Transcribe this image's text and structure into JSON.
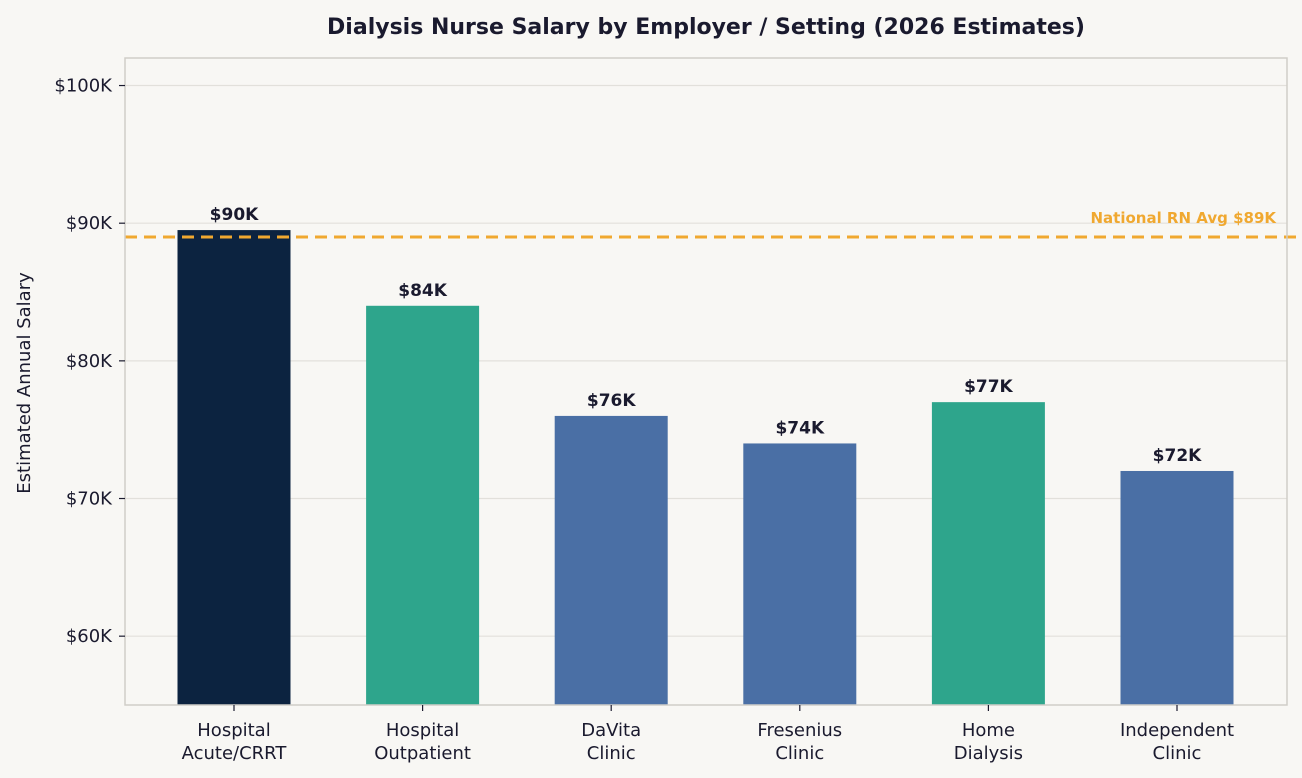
{
  "chart_data": {
    "type": "bar",
    "title": "Dialysis Nurse Salary by Employer / Setting (2026 Estimates)",
    "xlabel": "",
    "ylabel": "Estimated Annual Salary",
    "categories": [
      [
        "Hospital",
        "Acute/CRRT"
      ],
      [
        "Hospital",
        "Outpatient"
      ],
      [
        "DaVita",
        "Clinic"
      ],
      [
        "Fresenius",
        "Clinic"
      ],
      [
        "Home",
        "Dialysis"
      ],
      [
        "Independent",
        "Clinic"
      ]
    ],
    "values": [
      89500,
      84000,
      76000,
      74000,
      77000,
      72000
    ],
    "value_labels": [
      "$90K",
      "$84K",
      "$76K",
      "$74K",
      "$77K",
      "$72K"
    ],
    "bar_colors": [
      "#0c2340",
      "#2ea58c",
      "#4a6fa5",
      "#4a6fa5",
      "#2ea58c",
      "#4a6fa5"
    ],
    "ylim": [
      55000,
      102000
    ],
    "yticks": [
      60000,
      70000,
      80000,
      90000,
      100000
    ],
    "ytick_labels": [
      "$60K",
      "$70K",
      "$80K",
      "$90K",
      "$100K"
    ],
    "reference_line": {
      "value": 89000,
      "label": "National RN Avg $89K",
      "color": "#f0a830",
      "style": "dashed"
    },
    "grid": true,
    "colors": {
      "background": "#f8f7f4",
      "grid": "#e2e0db",
      "frame": "#d0cec8",
      "text": "#1a1a2e"
    }
  }
}
